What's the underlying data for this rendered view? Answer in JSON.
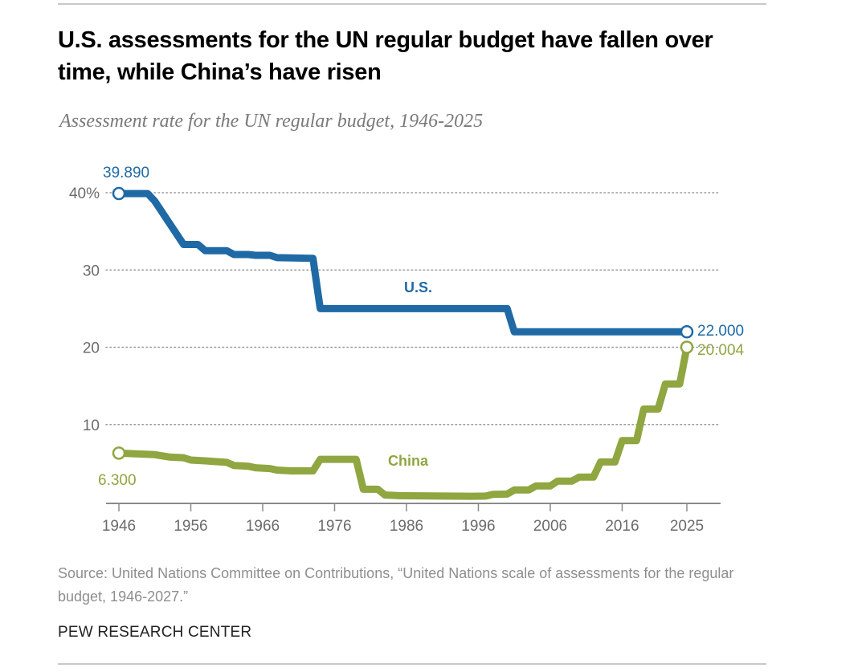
{
  "header": {
    "title": "U.S. assessments for the UN regular budget have fallen over time, while China’s have risen",
    "subtitle": "Assessment rate for the UN regular budget, 1946-2025"
  },
  "footer": {
    "source": "Source: United Nations Committee on Contributions, “United Nations scale of assessments for the regular budget, 1946-2027.”",
    "brand": "PEW RESEARCH CENTER"
  },
  "colors": {
    "us": "#1f6aa5",
    "china": "#8fa641",
    "gridline": "#9a9a9a",
    "axis": "#8a8a8a"
  },
  "chart_data": {
    "type": "line",
    "title": "U.S. assessments for the UN regular budget have fallen over time, while China’s have risen",
    "subtitle": "Assessment rate for the UN regular budget, 1946-2025",
    "xlabel": "",
    "ylabel": "",
    "xlim": [
      1946,
      2028
    ],
    "ylim": [
      0,
      40
    ],
    "x_ticks": [
      1946,
      1956,
      1966,
      1976,
      1986,
      1996,
      2006,
      2016,
      2025
    ],
    "x_tick_labels": [
      "1946",
      "1956",
      "1966",
      "1976",
      "1986",
      "1996",
      "2006",
      "2016",
      "2025"
    ],
    "y_ticks": [
      10,
      20,
      30,
      40
    ],
    "y_tick_labels": [
      "10",
      "20",
      "30",
      "40%"
    ],
    "grid": "horizontal-dotted",
    "legend": "direct-labels",
    "series": [
      {
        "name": "U.S.",
        "label": "U.S.",
        "color_key": "us",
        "points": [
          [
            1946,
            39.89
          ],
          [
            1950,
            39.89
          ],
          [
            1951,
            38.9
          ],
          [
            1955,
            33.3
          ],
          [
            1957,
            33.3
          ],
          [
            1958,
            32.5
          ],
          [
            1961,
            32.5
          ],
          [
            1962,
            32.0
          ],
          [
            1964,
            32.0
          ],
          [
            1965,
            31.9
          ],
          [
            1967,
            31.9
          ],
          [
            1968,
            31.6
          ],
          [
            1973,
            31.5
          ],
          [
            1974,
            25.0
          ],
          [
            2000,
            25.0
          ],
          [
            2001,
            22.0
          ],
          [
            2025,
            22.0
          ]
        ],
        "start_label": "39.890",
        "end_label": "22.000"
      },
      {
        "name": "China",
        "label": "China",
        "color_key": "china",
        "points": [
          [
            1946,
            6.3
          ],
          [
            1951,
            6.1
          ],
          [
            1953,
            5.8
          ],
          [
            1955,
            5.7
          ],
          [
            1956,
            5.4
          ],
          [
            1958,
            5.3
          ],
          [
            1961,
            5.1
          ],
          [
            1962,
            4.7
          ],
          [
            1964,
            4.6
          ],
          [
            1965,
            4.4
          ],
          [
            1967,
            4.3
          ],
          [
            1968,
            4.1
          ],
          [
            1970,
            4.0
          ],
          [
            1973,
            4.0
          ],
          [
            1974,
            5.5
          ],
          [
            1979,
            5.5
          ],
          [
            1980,
            1.62
          ],
          [
            1982,
            1.62
          ],
          [
            1983,
            0.88
          ],
          [
            1985,
            0.79
          ],
          [
            1995,
            0.72
          ],
          [
            1997,
            0.74
          ],
          [
            1998,
            0.97
          ],
          [
            2000,
            1.0
          ],
          [
            2001,
            1.54
          ],
          [
            2003,
            1.53
          ],
          [
            2004,
            2.05
          ],
          [
            2006,
            2.05
          ],
          [
            2007,
            2.67
          ],
          [
            2009,
            2.67
          ],
          [
            2010,
            3.19
          ],
          [
            2012,
            3.19
          ],
          [
            2013,
            5.15
          ],
          [
            2015,
            5.15
          ],
          [
            2016,
            7.92
          ],
          [
            2018,
            7.92
          ],
          [
            2019,
            12.0
          ],
          [
            2021,
            12.0
          ],
          [
            2022,
            15.25
          ],
          [
            2024,
            15.25
          ],
          [
            2025,
            20.004
          ]
        ],
        "start_label": "6.300",
        "end_label": "20.004"
      }
    ]
  }
}
